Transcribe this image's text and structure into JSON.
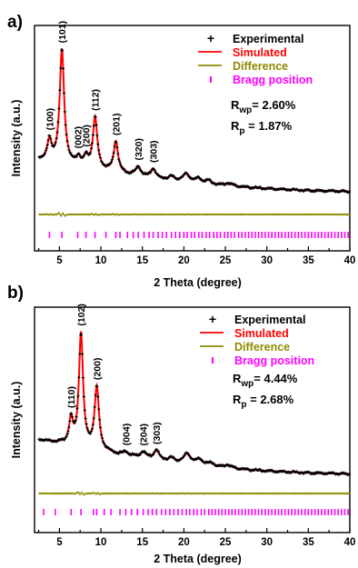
{
  "chart_data": [
    {
      "type": "line",
      "panel_label": "a)",
      "xlabel": "2 Theta (degree)",
      "ylabel": "Intensity (a.u.)",
      "xlim": [
        2,
        40
      ],
      "x_ticks": [
        5,
        10,
        15,
        20,
        25,
        30,
        35,
        40
      ],
      "y_tick_labels": false,
      "grid": false,
      "legend_position": "top-right",
      "legend": [
        {
          "symbol": "+",
          "label": "Experimental",
          "color": "#000000"
        },
        {
          "symbol": "line",
          "label": "Simulated",
          "color": "#ff0000"
        },
        {
          "symbol": "line",
          "label": "Difference",
          "color": "#8b8b00"
        },
        {
          "symbol": "tick",
          "label": "Bragg position",
          "color": "#ff00ff"
        }
      ],
      "stats": [
        {
          "symbol": "R",
          "sub": "wp",
          "value": "= 2.60%"
        },
        {
          "symbol": "R",
          "sub": "p",
          "value": " = 1.87%"
        }
      ],
      "peaks": [
        {
          "x": 3.8,
          "label": "(100)"
        },
        {
          "x": 5.3,
          "label": "(101)"
        },
        {
          "x": 7.2,
          "label": "(002)"
        },
        {
          "x": 8.2,
          "label": "(200)"
        },
        {
          "x": 9.3,
          "label": "(112)"
        },
        {
          "x": 11.8,
          "label": "(201)"
        },
        {
          "x": 14.5,
          "label": "(320)"
        },
        {
          "x": 16.3,
          "label": "(303)"
        }
      ],
      "profile": {
        "baseline": [
          [
            2.5,
            0.34
          ],
          [
            5,
            0.31
          ],
          [
            8,
            0.27
          ],
          [
            12,
            0.22
          ],
          [
            16,
            0.18
          ],
          [
            20,
            0.145
          ],
          [
            25,
            0.11
          ],
          [
            30,
            0.085
          ],
          [
            35,
            0.07
          ],
          [
            40,
            0.06
          ]
        ],
        "peaks": [
          {
            "x": 3.8,
            "height": 0.18,
            "width": 0.3
          },
          {
            "x": 5.3,
            "height": 1.0,
            "width": 0.32
          },
          {
            "x": 7.3,
            "height": 0.07,
            "width": 0.3
          },
          {
            "x": 8.2,
            "height": 0.08,
            "width": 0.3
          },
          {
            "x": 9.3,
            "height": 0.45,
            "width": 0.32
          },
          {
            "x": 11.8,
            "height": 0.27,
            "width": 0.32
          },
          {
            "x": 14.5,
            "height": 0.08,
            "width": 0.35
          },
          {
            "x": 16.3,
            "height": 0.08,
            "width": 0.35
          },
          {
            "x": 18.5,
            "height": 0.03,
            "width": 0.4
          },
          {
            "x": 20.3,
            "height": 0.07,
            "width": 0.5
          },
          {
            "x": 21.8,
            "height": 0.04,
            "width": 0.4
          },
          {
            "x": 23.0,
            "height": 0.03,
            "width": 0.4
          },
          {
            "x": 25.4,
            "height": 0.025,
            "width": 0.5
          }
        ]
      },
      "bragg_positions": [
        3.8,
        5.3,
        7.2,
        8.2,
        9.3,
        10.6,
        11.8,
        12.3,
        13.2,
        13.9,
        14.5,
        15.2,
        15.8,
        16.3,
        16.9,
        17.4,
        17.9,
        18.5,
        19.0,
        19.5,
        20.0,
        20.4,
        20.9,
        21.3,
        21.8,
        22.2,
        22.7,
        23.1,
        23.6,
        24.0,
        24.4,
        24.9,
        25.3,
        25.7,
        26.1,
        26.6,
        27.0,
        27.4,
        27.8,
        28.2,
        28.6,
        29.0,
        29.4,
        29.8,
        30.2,
        30.6,
        31.0,
        31.4,
        31.8,
        32.2,
        32.6,
        33.0,
        33.4,
        33.8,
        34.2,
        34.6,
        35.0,
        35.4,
        35.8,
        36.2,
        36.6,
        37.0,
        37.4,
        37.8,
        38.2,
        38.6,
        39.0,
        39.4,
        39.8
      ]
    },
    {
      "type": "line",
      "panel_label": "b)",
      "xlabel": "2 Theta (degree)",
      "ylabel": "Intensity (a.u.)",
      "xlim": [
        2,
        40
      ],
      "x_ticks": [
        5,
        10,
        15,
        20,
        25,
        30,
        35,
        40
      ],
      "y_tick_labels": false,
      "grid": false,
      "legend_position": "top-right",
      "legend": [
        {
          "symbol": "+",
          "label": "Experimental",
          "color": "#000000"
        },
        {
          "symbol": "line",
          "label": "Simulated",
          "color": "#ff0000"
        },
        {
          "symbol": "line",
          "label": "Difference",
          "color": "#8b8b00"
        },
        {
          "symbol": "tick",
          "label": "Bragg position",
          "color": "#ff00ff"
        }
      ],
      "stats": [
        {
          "symbol": "R",
          "sub": "wp",
          "value": "= 4.44%"
        },
        {
          "symbol": "R",
          "sub": "p",
          "value": " = 2.68%"
        }
      ],
      "peaks": [
        {
          "x": 6.4,
          "label": "(110)"
        },
        {
          "x": 7.6,
          "label": "(102)"
        },
        {
          "x": 9.5,
          "label": "(200)"
        },
        {
          "x": 13.0,
          "label": "(004)"
        },
        {
          "x": 15.1,
          "label": "(204)"
        },
        {
          "x": 16.7,
          "label": "(303)"
        }
      ],
      "profile": {
        "baseline": [
          [
            2.5,
            0.37
          ],
          [
            5,
            0.34
          ],
          [
            8,
            0.29
          ],
          [
            12,
            0.24
          ],
          [
            16,
            0.2
          ],
          [
            20,
            0.16
          ],
          [
            25,
            0.12
          ],
          [
            30,
            0.095
          ],
          [
            35,
            0.08
          ],
          [
            40,
            0.07
          ]
        ],
        "peaks": [
          {
            "x": 6.4,
            "height": 0.22,
            "width": 0.28
          },
          {
            "x": 7.6,
            "height": 1.0,
            "width": 0.3
          },
          {
            "x": 9.5,
            "height": 0.55,
            "width": 0.32
          },
          {
            "x": 13.0,
            "height": 0.03,
            "width": 0.35
          },
          {
            "x": 15.1,
            "height": 0.05,
            "width": 0.4
          },
          {
            "x": 16.7,
            "height": 0.08,
            "width": 0.4
          },
          {
            "x": 18.5,
            "height": 0.03,
            "width": 0.4
          },
          {
            "x": 20.4,
            "height": 0.09,
            "width": 0.5
          },
          {
            "x": 21.9,
            "height": 0.05,
            "width": 0.45
          },
          {
            "x": 23.3,
            "height": 0.03,
            "width": 0.45
          },
          {
            "x": 25.3,
            "height": 0.03,
            "width": 0.5
          }
        ]
      },
      "bragg_positions": [
        3.1,
        4.5,
        6.4,
        7.6,
        9.1,
        9.5,
        10.4,
        11.2,
        12.3,
        13.0,
        13.7,
        14.4,
        15.1,
        15.7,
        16.2,
        16.7,
        17.3,
        17.8,
        18.3,
        18.8,
        19.3,
        19.8,
        20.3,
        20.7,
        21.2,
        21.6,
        22.1,
        22.5,
        23.0,
        23.4,
        23.8,
        24.2,
        24.6,
        25.0,
        25.4,
        25.8,
        26.2,
        26.6,
        27.0,
        27.4,
        27.8,
        28.2,
        28.6,
        29.0,
        29.4,
        29.8,
        30.2,
        30.6,
        31.0,
        31.4,
        31.8,
        32.2,
        32.6,
        33.0,
        33.4,
        33.8,
        34.2,
        34.6,
        35.0,
        35.4,
        35.8,
        36.2,
        36.6,
        37.0,
        37.4,
        37.8,
        38.2,
        38.6,
        39.0,
        39.4,
        39.8
      ]
    }
  ]
}
